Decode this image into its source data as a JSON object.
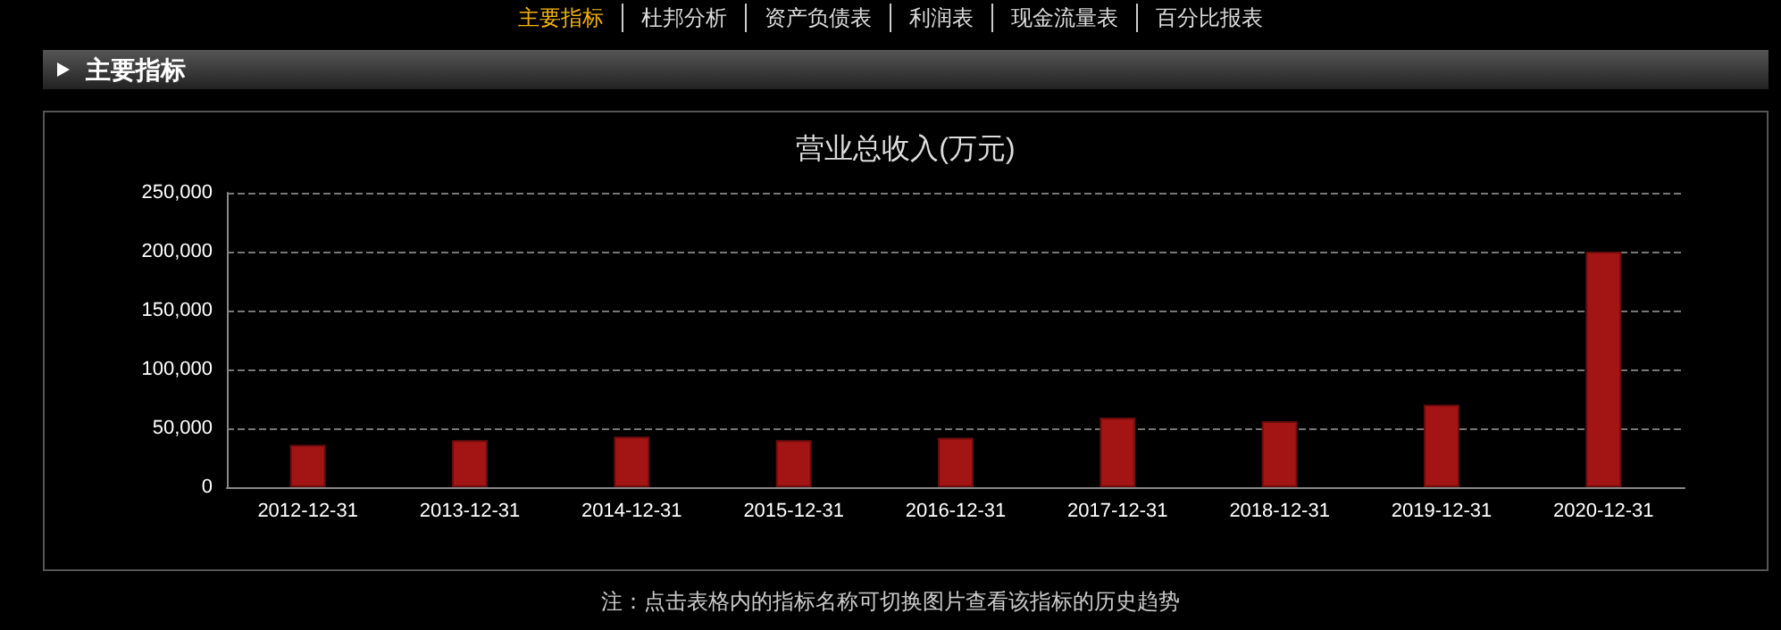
{
  "chart_data": {
    "type": "bar",
    "title": "营业总收入(万元)",
    "categories": [
      "2012-12-31",
      "2013-12-31",
      "2014-12-31",
      "2015-12-31",
      "2016-12-31",
      "2017-12-31",
      "2018-12-31",
      "2019-12-31",
      "2020-12-31"
    ],
    "values": [
      36000,
      40000,
      43000,
      40000,
      42000,
      59000,
      56000,
      70000,
      200000
    ],
    "color": "#a31515",
    "ylim": [
      0,
      250000
    ],
    "yticks": [
      0,
      {
        "value": 50000,
        "label": "50,000"
      },
      {
        "value": 100000,
        "label": "100,000"
      },
      {
        "value": 150000,
        "label": "150,000"
      },
      {
        "value": 200000,
        "label": "200,000"
      },
      {
        "value": 250000,
        "label": "250,000"
      }
    ],
    "grid": "y",
    "annotations": [
      "主要指标",
      "杜邦分析",
      "资产负债表",
      "利润表",
      "现金流量表",
      "百分比报表",
      "主要指标",
      "注：点击表格内的指标名称可切换图片查看该指标的历史趋势"
    ]
  }
}
